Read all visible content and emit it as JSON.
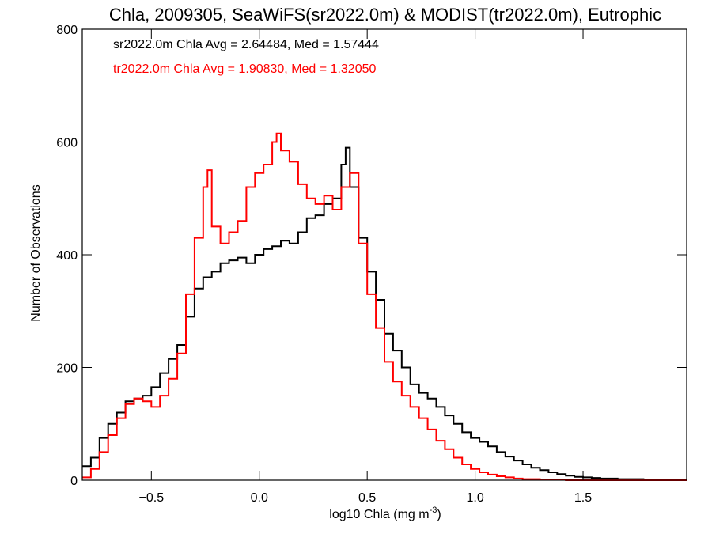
{
  "chart_data": {
    "type": "line",
    "title": "Chla, 2009305, SeaWiFS(sr2022.0m) & MODIST(tr2022.0m), Eutrophic",
    "xlabel": "log10 Chla (mg m",
    "xlabel_sup": "-3",
    "xlabel_tail": ")",
    "ylabel": "Number of Observations",
    "xlim": [
      -0.82,
      1.98
    ],
    "ylim": [
      0,
      800
    ],
    "x_ticks": [
      -0.5,
      0.0,
      0.5,
      1.0,
      1.5
    ],
    "x_tick_labels": [
      "−0.5",
      "0.0",
      "0.5",
      "1.0",
      "1.5"
    ],
    "y_ticks": [
      0,
      200,
      400,
      600,
      800
    ],
    "y_tick_labels": [
      "0",
      "200",
      "400",
      "600",
      "800"
    ],
    "annotations": [
      {
        "text": "sr2022.0m Chla Avg = 2.64484, Med = 1.57444",
        "color": "#000000"
      },
      {
        "text": "tr2022.0m Chla Avg = 1.90830, Med = 1.32050",
        "color": "#ff0000"
      }
    ],
    "series": [
      {
        "color": "#000000",
        "x": [
          -0.82,
          -0.78,
          -0.74,
          -0.7,
          -0.66,
          -0.62,
          -0.58,
          -0.54,
          -0.5,
          -0.46,
          -0.42,
          -0.38,
          -0.34,
          -0.3,
          -0.26,
          -0.22,
          -0.18,
          -0.14,
          -0.1,
          -0.06,
          -0.02,
          0.02,
          0.06,
          0.1,
          0.14,
          0.18,
          0.22,
          0.26,
          0.3,
          0.34,
          0.38,
          0.4,
          0.42,
          0.46,
          0.5,
          0.54,
          0.58,
          0.62,
          0.66,
          0.7,
          0.74,
          0.78,
          0.82,
          0.86,
          0.9,
          0.94,
          0.98,
          1.02,
          1.06,
          1.1,
          1.14,
          1.18,
          1.22,
          1.26,
          1.3,
          1.34,
          1.38,
          1.42,
          1.46,
          1.5,
          1.54,
          1.58,
          1.62,
          1.66,
          1.7,
          1.74,
          1.78,
          1.82,
          1.86,
          1.9,
          1.98
        ],
        "y": [
          25,
          40,
          75,
          100,
          120,
          140,
          145,
          150,
          165,
          190,
          215,
          240,
          290,
          340,
          360,
          370,
          385,
          390,
          395,
          385,
          400,
          410,
          415,
          425,
          420,
          440,
          465,
          470,
          490,
          500,
          560,
          590,
          520,
          430,
          370,
          320,
          260,
          230,
          200,
          170,
          155,
          145,
          130,
          115,
          100,
          85,
          75,
          68,
          60,
          50,
          42,
          35,
          28,
          22,
          18,
          14,
          11,
          8,
          6,
          5,
          4,
          3,
          3,
          2,
          2,
          2,
          1,
          1,
          1,
          1,
          0
        ]
      },
      {
        "color": "#ff0000",
        "x": [
          -0.82,
          -0.78,
          -0.74,
          -0.7,
          -0.66,
          -0.62,
          -0.58,
          -0.54,
          -0.5,
          -0.46,
          -0.42,
          -0.38,
          -0.34,
          -0.3,
          -0.26,
          -0.24,
          -0.22,
          -0.18,
          -0.14,
          -0.1,
          -0.06,
          -0.02,
          0.02,
          0.06,
          0.08,
          0.1,
          0.14,
          0.18,
          0.22,
          0.26,
          0.3,
          0.34,
          0.38,
          0.42,
          0.46,
          0.5,
          0.54,
          0.58,
          0.62,
          0.66,
          0.7,
          0.74,
          0.78,
          0.82,
          0.86,
          0.9,
          0.94,
          0.98,
          1.02,
          1.06,
          1.1,
          1.14,
          1.18,
          1.22,
          1.26,
          1.3,
          1.34,
          1.38,
          1.42,
          1.46,
          1.5,
          1.54,
          1.58,
          1.62,
          1.66,
          1.7,
          1.74,
          1.78,
          1.82,
          1.86,
          1.98
        ],
        "y": [
          5,
          20,
          50,
          80,
          110,
          135,
          145,
          140,
          130,
          150,
          180,
          225,
          330,
          430,
          520,
          550,
          450,
          420,
          440,
          460,
          520,
          545,
          560,
          600,
          615,
          585,
          565,
          525,
          500,
          490,
          505,
          480,
          520,
          545,
          420,
          330,
          270,
          210,
          175,
          150,
          130,
          110,
          90,
          70,
          55,
          40,
          28,
          20,
          14,
          10,
          7,
          5,
          3,
          2,
          2,
          1,
          1,
          1,
          0,
          0,
          0,
          0,
          0,
          0,
          0,
          0,
          0,
          0,
          0,
          0,
          0
        ]
      }
    ]
  }
}
